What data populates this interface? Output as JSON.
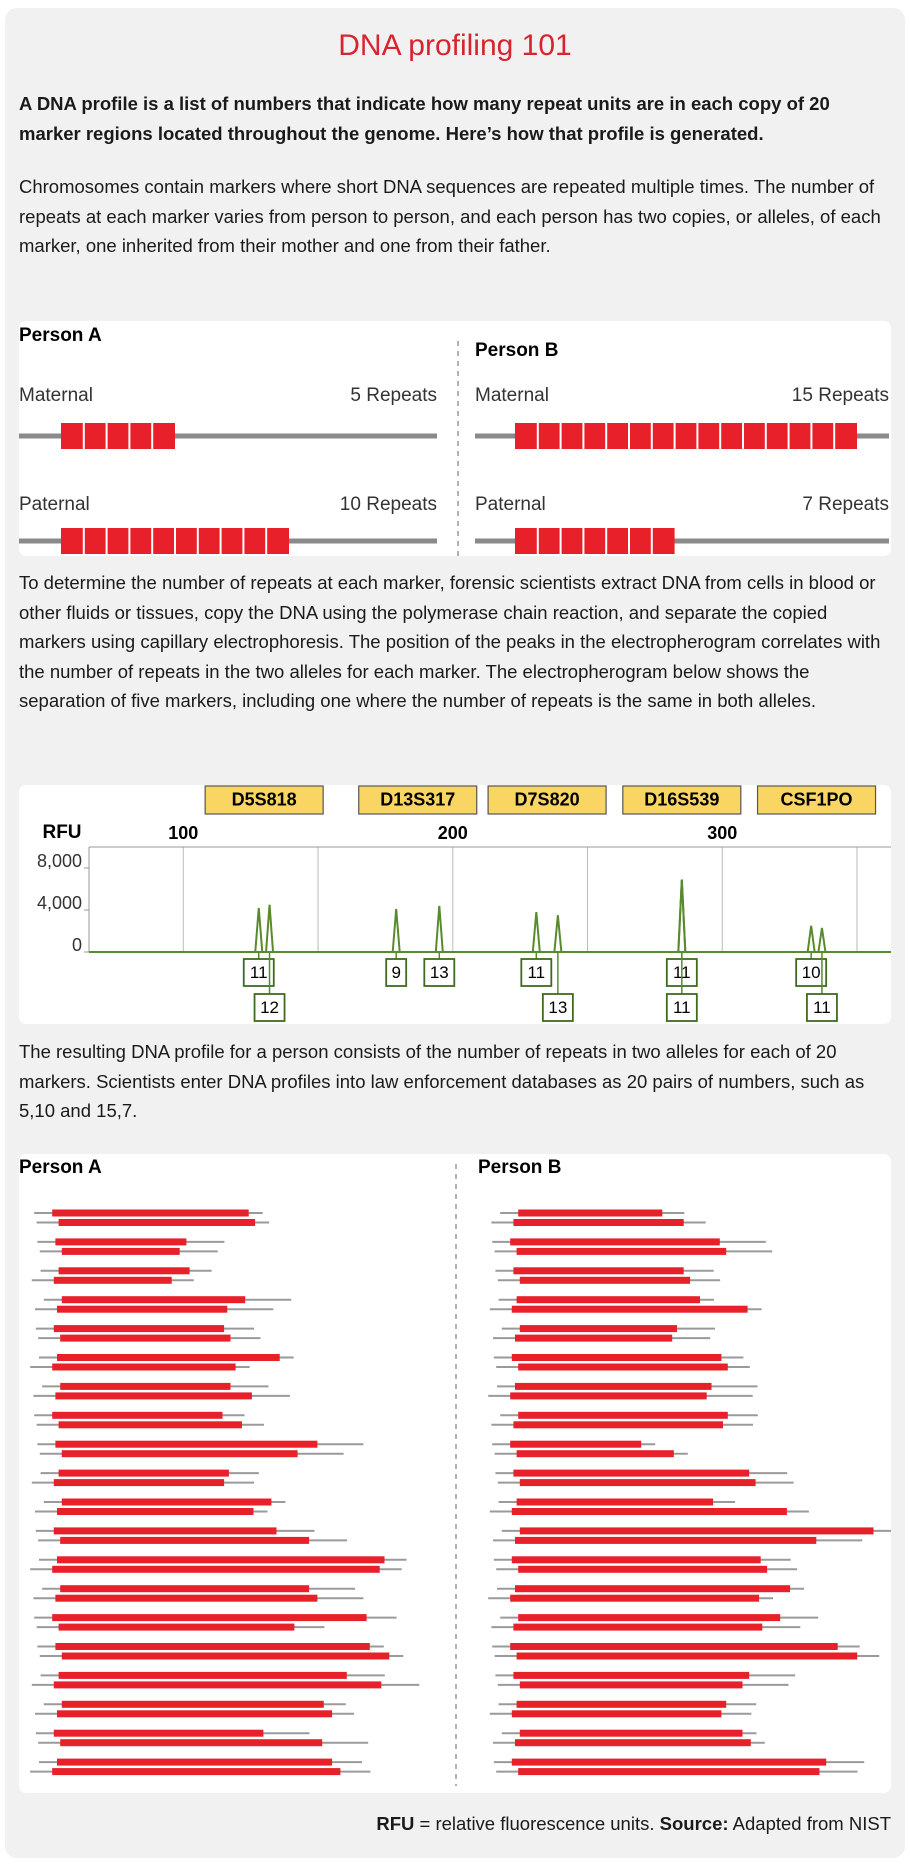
{
  "title": "DNA profiling 101",
  "intro": "A DNA profile is a list of numbers that indicate how many repeat units are in each copy of 20 marker regions located throughout the genome. Here’s how that profile is generated.",
  "paragraphs": [
    "Chromosomes contain markers where short DNA sequences are repeated multiple times. The number of repeats at each marker varies from person to person, and each person has two copies, or alleles, of each marker, one inherited from their mother and one from their father.",
    "To determine the number of repeats at each marker, forensic scientists extract DNA from cells in blood or other fluids or tissues, copy the DNA using the polymerase chain reaction, and separate the copied markers using capillary electrophoresis. The position of the peaks in the electropherogram correlates with the number of repeats in the two alleles for each marker. The electropherogram below shows the separation of five markers, including one where the number of repeats is the same in both alleles.",
    "The resulting DNA profile for a person consists of the number of repeats in two alleles for each of 20 markers. Scientists enter DNA profiles into law enforcement databases as 20 pairs of numbers, such as 5,10 and 15,7."
  ],
  "alleles_figure": {
    "people": [
      {
        "name": "Person A",
        "alleles": [
          {
            "parent": "Maternal",
            "repeats": 5,
            "unit": "Repeats"
          },
          {
            "parent": "Paternal",
            "repeats": 10,
            "unit": "Repeats"
          }
        ]
      },
      {
        "name": "Person B",
        "alleles": [
          {
            "parent": "Maternal",
            "repeats": 15,
            "unit": "Repeats"
          },
          {
            "parent": "Paternal",
            "repeats": 7,
            "unit": "Repeats"
          }
        ]
      }
    ],
    "color": "#e8202a"
  },
  "electropherogram": {
    "type": "line",
    "axis_label": "RFU",
    "xlim": [
      65,
      363
    ],
    "xticks": [
      100,
      200,
      300
    ],
    "xgrid": [
      100,
      150,
      200,
      250,
      300,
      350
    ],
    "ylim": [
      0,
      10000
    ],
    "yticks": [
      0,
      {
        "value": 4000,
        "label": "4,000"
      },
      {
        "value": 8000,
        "label": "8,000"
      }
    ],
    "color": "#5a8a2e",
    "markers": [
      {
        "name": "D5S818",
        "peaks": [
          {
            "allele": 11,
            "size": 128,
            "rfu": 4200
          },
          {
            "allele": 12,
            "size": 132,
            "rfu": 4500
          }
        ]
      },
      {
        "name": "D13S317",
        "peaks": [
          {
            "allele": 9,
            "size": 179,
            "rfu": 4100
          },
          {
            "allele": 13,
            "size": 195,
            "rfu": 4400
          }
        ]
      },
      {
        "name": "D7S820",
        "peaks": [
          {
            "allele": 11,
            "size": 231,
            "rfu": 3800
          },
          {
            "allele": 13,
            "size": 239,
            "rfu": 3500
          }
        ]
      },
      {
        "name": "D16S539",
        "peaks": [
          {
            "allele": 11,
            "size": 285,
            "rfu": 6900
          },
          {
            "allele": 11,
            "size": 285,
            "rfu": 6900
          }
        ]
      },
      {
        "name": "CSF1PO",
        "peaks": [
          {
            "allele": 10,
            "size": 333,
            "rfu": 2500
          },
          {
            "allele": 11,
            "size": 337,
            "rfu": 2300
          }
        ]
      }
    ]
  },
  "profiles": {
    "type": "bar",
    "color": "#e8202a",
    "people": [
      {
        "name": "Person A",
        "pairs": [
          [
            15,
            15
          ],
          [
            10,
            9
          ],
          [
            10,
            9
          ],
          [
            14,
            13
          ],
          [
            13,
            13
          ],
          [
            17,
            14
          ],
          [
            13,
            15
          ],
          [
            13,
            14
          ],
          [
            20,
            18
          ],
          [
            13,
            13
          ],
          [
            16,
            15
          ],
          [
            17,
            19
          ],
          [
            25,
            25
          ],
          [
            19,
            20
          ],
          [
            24,
            18
          ],
          [
            24,
            25
          ],
          [
            22,
            25
          ],
          [
            20,
            21
          ],
          [
            16,
            20
          ],
          [
            21,
            22
          ]
        ]
      },
      {
        "name": "Person B",
        "pairs": [
          [
            11,
            13
          ],
          [
            16,
            16
          ],
          [
            13,
            13
          ],
          [
            14,
            18
          ],
          [
            12,
            12
          ],
          [
            16,
            16
          ],
          [
            15,
            15
          ],
          [
            16,
            16
          ],
          [
            10,
            12
          ],
          [
            18,
            18
          ],
          [
            15,
            21
          ],
          [
            27,
            23
          ],
          [
            19,
            19
          ],
          [
            21,
            19
          ],
          [
            20,
            19
          ],
          [
            25,
            26
          ],
          [
            18,
            17
          ],
          [
            16,
            16
          ],
          [
            17,
            18
          ],
          [
            24,
            23
          ]
        ]
      }
    ]
  },
  "footer": {
    "term": "RFU",
    "definition": "= relative fluorescence units.",
    "source_label": "Source:",
    "source": "Adapted from NIST"
  }
}
